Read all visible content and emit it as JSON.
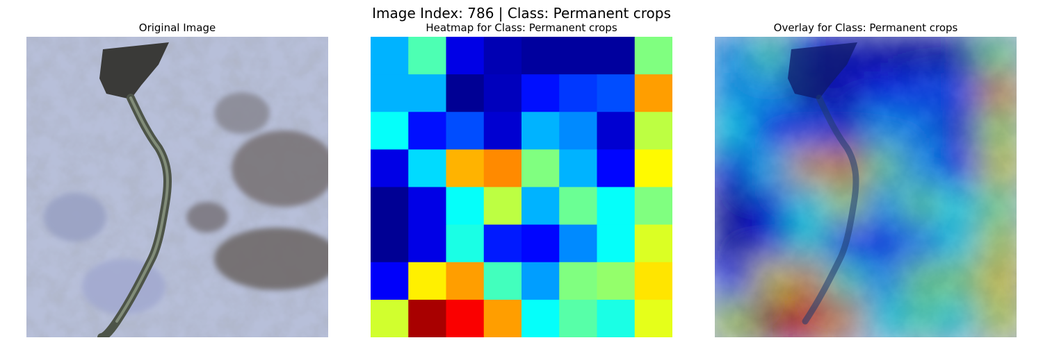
{
  "figure": {
    "suptitle": "Image Index: 786 | Class: Permanent crops"
  },
  "panels": [
    {
      "title": "Original Image"
    },
    {
      "title": "Heatmap for Class: Permanent crops"
    },
    {
      "title": "Overlay for Class: Permanent crops"
    }
  ],
  "chart_data": {
    "type": "heatmap",
    "title": "Heatmap for Class: Permanent crops",
    "rows": 8,
    "cols": 8,
    "colormap": "jet",
    "vmin": 0,
    "vmax": 1,
    "values": [
      [
        0.3,
        0.45,
        0.1,
        0.05,
        0.03,
        0.03,
        0.03,
        0.5
      ],
      [
        0.3,
        0.3,
        0.02,
        0.06,
        0.14,
        0.18,
        0.2,
        0.72
      ],
      [
        0.38,
        0.14,
        0.2,
        0.08,
        0.3,
        0.26,
        0.08,
        0.56
      ],
      [
        0.1,
        0.34,
        0.7,
        0.74,
        0.5,
        0.3,
        0.13,
        0.63
      ],
      [
        0.02,
        0.1,
        0.38,
        0.56,
        0.3,
        0.48,
        0.38,
        0.5
      ],
      [
        0.02,
        0.1,
        0.4,
        0.15,
        0.13,
        0.26,
        0.38,
        0.59
      ],
      [
        0.12,
        0.64,
        0.72,
        0.44,
        0.28,
        0.5,
        0.52,
        0.65
      ],
      [
        0.58,
        0.96,
        0.88,
        0.72,
        0.38,
        0.46,
        0.4,
        0.6
      ]
    ]
  }
}
